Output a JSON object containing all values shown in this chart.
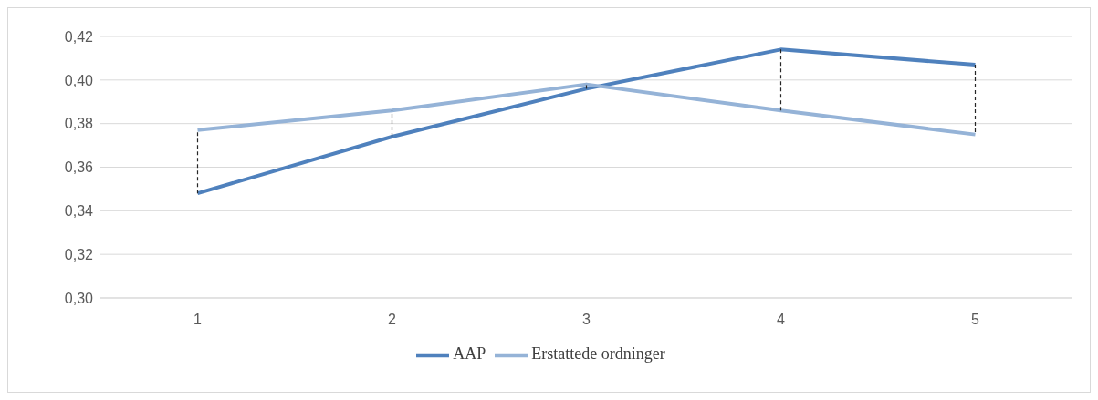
{
  "chart_data": {
    "type": "line",
    "categories": [
      "1",
      "2",
      "3",
      "4",
      "5"
    ],
    "series": [
      {
        "name": "AAP",
        "color": "#4f81bd",
        "values": [
          0.348,
          0.374,
          0.396,
          0.414,
          0.407
        ]
      },
      {
        "name": "Erstattede ordninger",
        "color": "#95b3d7",
        "values": [
          0.377,
          0.386,
          0.398,
          0.386,
          0.375
        ]
      }
    ],
    "ylim": [
      0.3,
      0.42
    ],
    "yticks": [
      {
        "value": 0.3,
        "label": "0,30"
      },
      {
        "value": 0.32,
        "label": "0,32"
      },
      {
        "value": 0.34,
        "label": "0,34"
      },
      {
        "value": 0.36,
        "label": "0,36"
      },
      {
        "value": 0.38,
        "label": "0,38"
      },
      {
        "value": 0.4,
        "label": "0,40"
      },
      {
        "value": 0.42,
        "label": "0,42"
      }
    ],
    "grid": "y",
    "legend": "bottom",
    "marker": "none",
    "line_style": "solid"
  }
}
